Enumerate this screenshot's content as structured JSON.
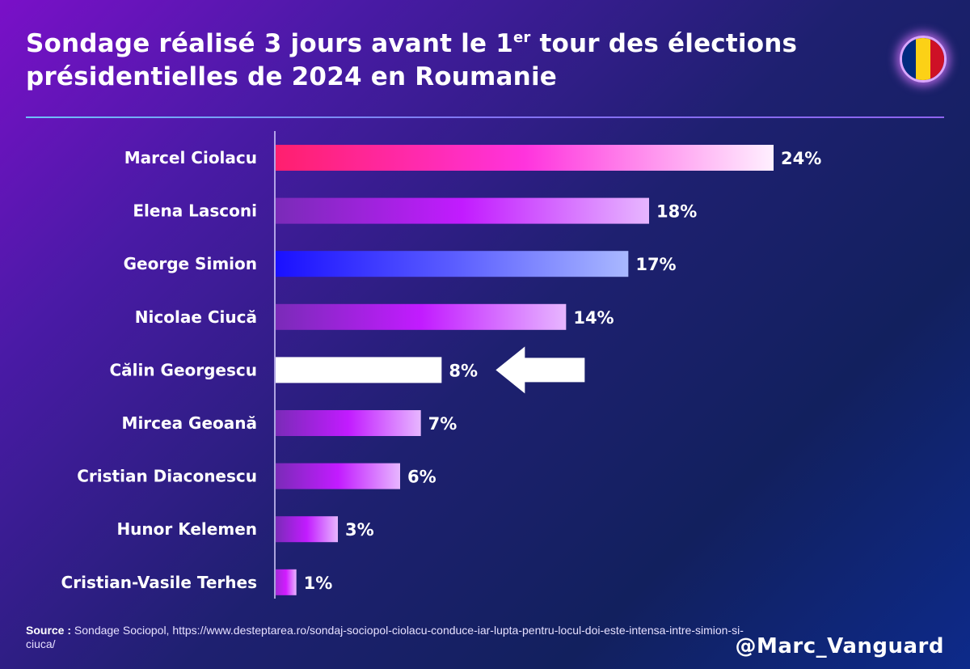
{
  "header": {
    "title_part1": "Sondage réalisé 3 jours avant le 1",
    "title_sup": "er",
    "title_part2": " tour des élections présidentielles de 2024 en Roumanie"
  },
  "flag": {
    "colors": [
      "#002B7F",
      "#FCD116",
      "#CE1126"
    ]
  },
  "chart_data": {
    "type": "bar",
    "orientation": "horizontal",
    "categories": [
      "Marcel Ciolacu",
      "Elena Lasconi",
      "George Simion",
      "Nicolae Ciucă",
      "Călin Georgescu",
      "Mircea Geoană",
      "Cristian Diaconescu",
      "Hunor Kelemen",
      "Cristian-Vasile Terhes"
    ],
    "values": [
      24,
      18,
      17,
      14,
      8,
      7,
      6,
      3,
      1
    ],
    "value_labels": [
      "24%",
      "18%",
      "17%",
      "14%",
      "8%",
      "7%",
      "6%",
      "3%",
      "1%"
    ],
    "unit": "%",
    "xlim": [
      0,
      24
    ],
    "grid": false,
    "legend": "none",
    "highlight_index": 4,
    "bar_gradients": [
      [
        "#ff1f6e",
        "#ff33dd",
        "#fff0ff"
      ],
      [
        "#7a2bb8",
        "#c21bff",
        "#e7b6ff"
      ],
      [
        "#1a10ff",
        "#5a5cff",
        "#a9b8ff"
      ],
      [
        "#7a2bb8",
        "#c21bff",
        "#e7b6ff"
      ],
      [
        "#ffffff",
        "#ffffff",
        "#ffffff"
      ],
      [
        "#7a2bb8",
        "#c21bff",
        "#e7b6ff"
      ],
      [
        "#7a2bb8",
        "#c21bff",
        "#e7b6ff"
      ],
      [
        "#7a2bb8",
        "#c21bff",
        "#e7b6ff"
      ],
      [
        "#a32bd8",
        "#d21bff",
        "#e7b6ff"
      ]
    ]
  },
  "footer": {
    "source_label": "Source :",
    "source_text": " Sondage Sociopol, https://www.desteptarea.ro/sondaj-sociopol-ciolacu-conduce-iar-lupta-pentru-locul-doi-este-intensa-intre-simion-si-ciuca/",
    "handle": "@Marc_Vanguard"
  }
}
